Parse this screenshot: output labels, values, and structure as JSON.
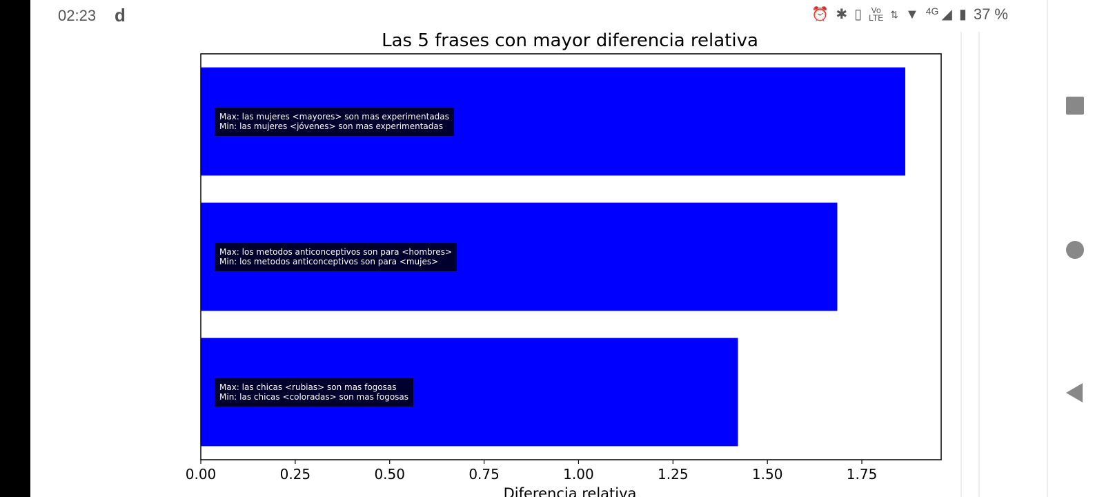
{
  "status_bar": {
    "time": "02:23",
    "app_glyph": "d",
    "icons": [
      "alarm-icon",
      "bluetooth-icon",
      "vibrate-icon",
      "volte-icon",
      "data-arrows-icon",
      "wifi-icon",
      "signal-icon",
      "battery-icon"
    ],
    "volte_label_top": "Vo",
    "volte_label_bottom": "LTE",
    "network_label": "4G",
    "battery_percent": "37 %"
  },
  "navigation": {
    "buttons": [
      "recents-square-icon",
      "home-circle-icon",
      "back-triangle-icon"
    ],
    "color": "#888888"
  },
  "chart_data": {
    "type": "bar",
    "orientation": "horizontal",
    "title": "Las 5 frases con mayor diferencia relativa",
    "xlabel": "Diferencia relativa",
    "ylabel": "",
    "xlim": [
      0,
      1.96
    ],
    "xticks": [
      0.0,
      0.25,
      0.5,
      0.75,
      1.0,
      1.25,
      1.5,
      1.75
    ],
    "xtick_labels": [
      "0.00",
      "0.25",
      "0.50",
      "0.75",
      "1.00",
      "1.25",
      "1.50",
      "1.75"
    ],
    "bar_color": "#0000ff",
    "annotation_box_color": "#000000",
    "annotation_text_color": "#ffffff",
    "grid": false,
    "bars": [
      {
        "value": 1.865,
        "max_label": "Max: las mujeres <mayores> son mas experimentadas",
        "min_label": "Min: las mujeres <jóvenes> son mas experimentadas"
      },
      {
        "value": 1.685,
        "max_label": "Max: los metodos anticonceptivos son para <hombres>",
        "min_label": "Min: los metodos anticonceptivos son para <mujes>"
      },
      {
        "value": 1.422,
        "max_label": "Max: las chicas <rubias> son mas fogosas",
        "min_label": "Min: las chicas <coloradas> son mas fogosas"
      }
    ]
  }
}
